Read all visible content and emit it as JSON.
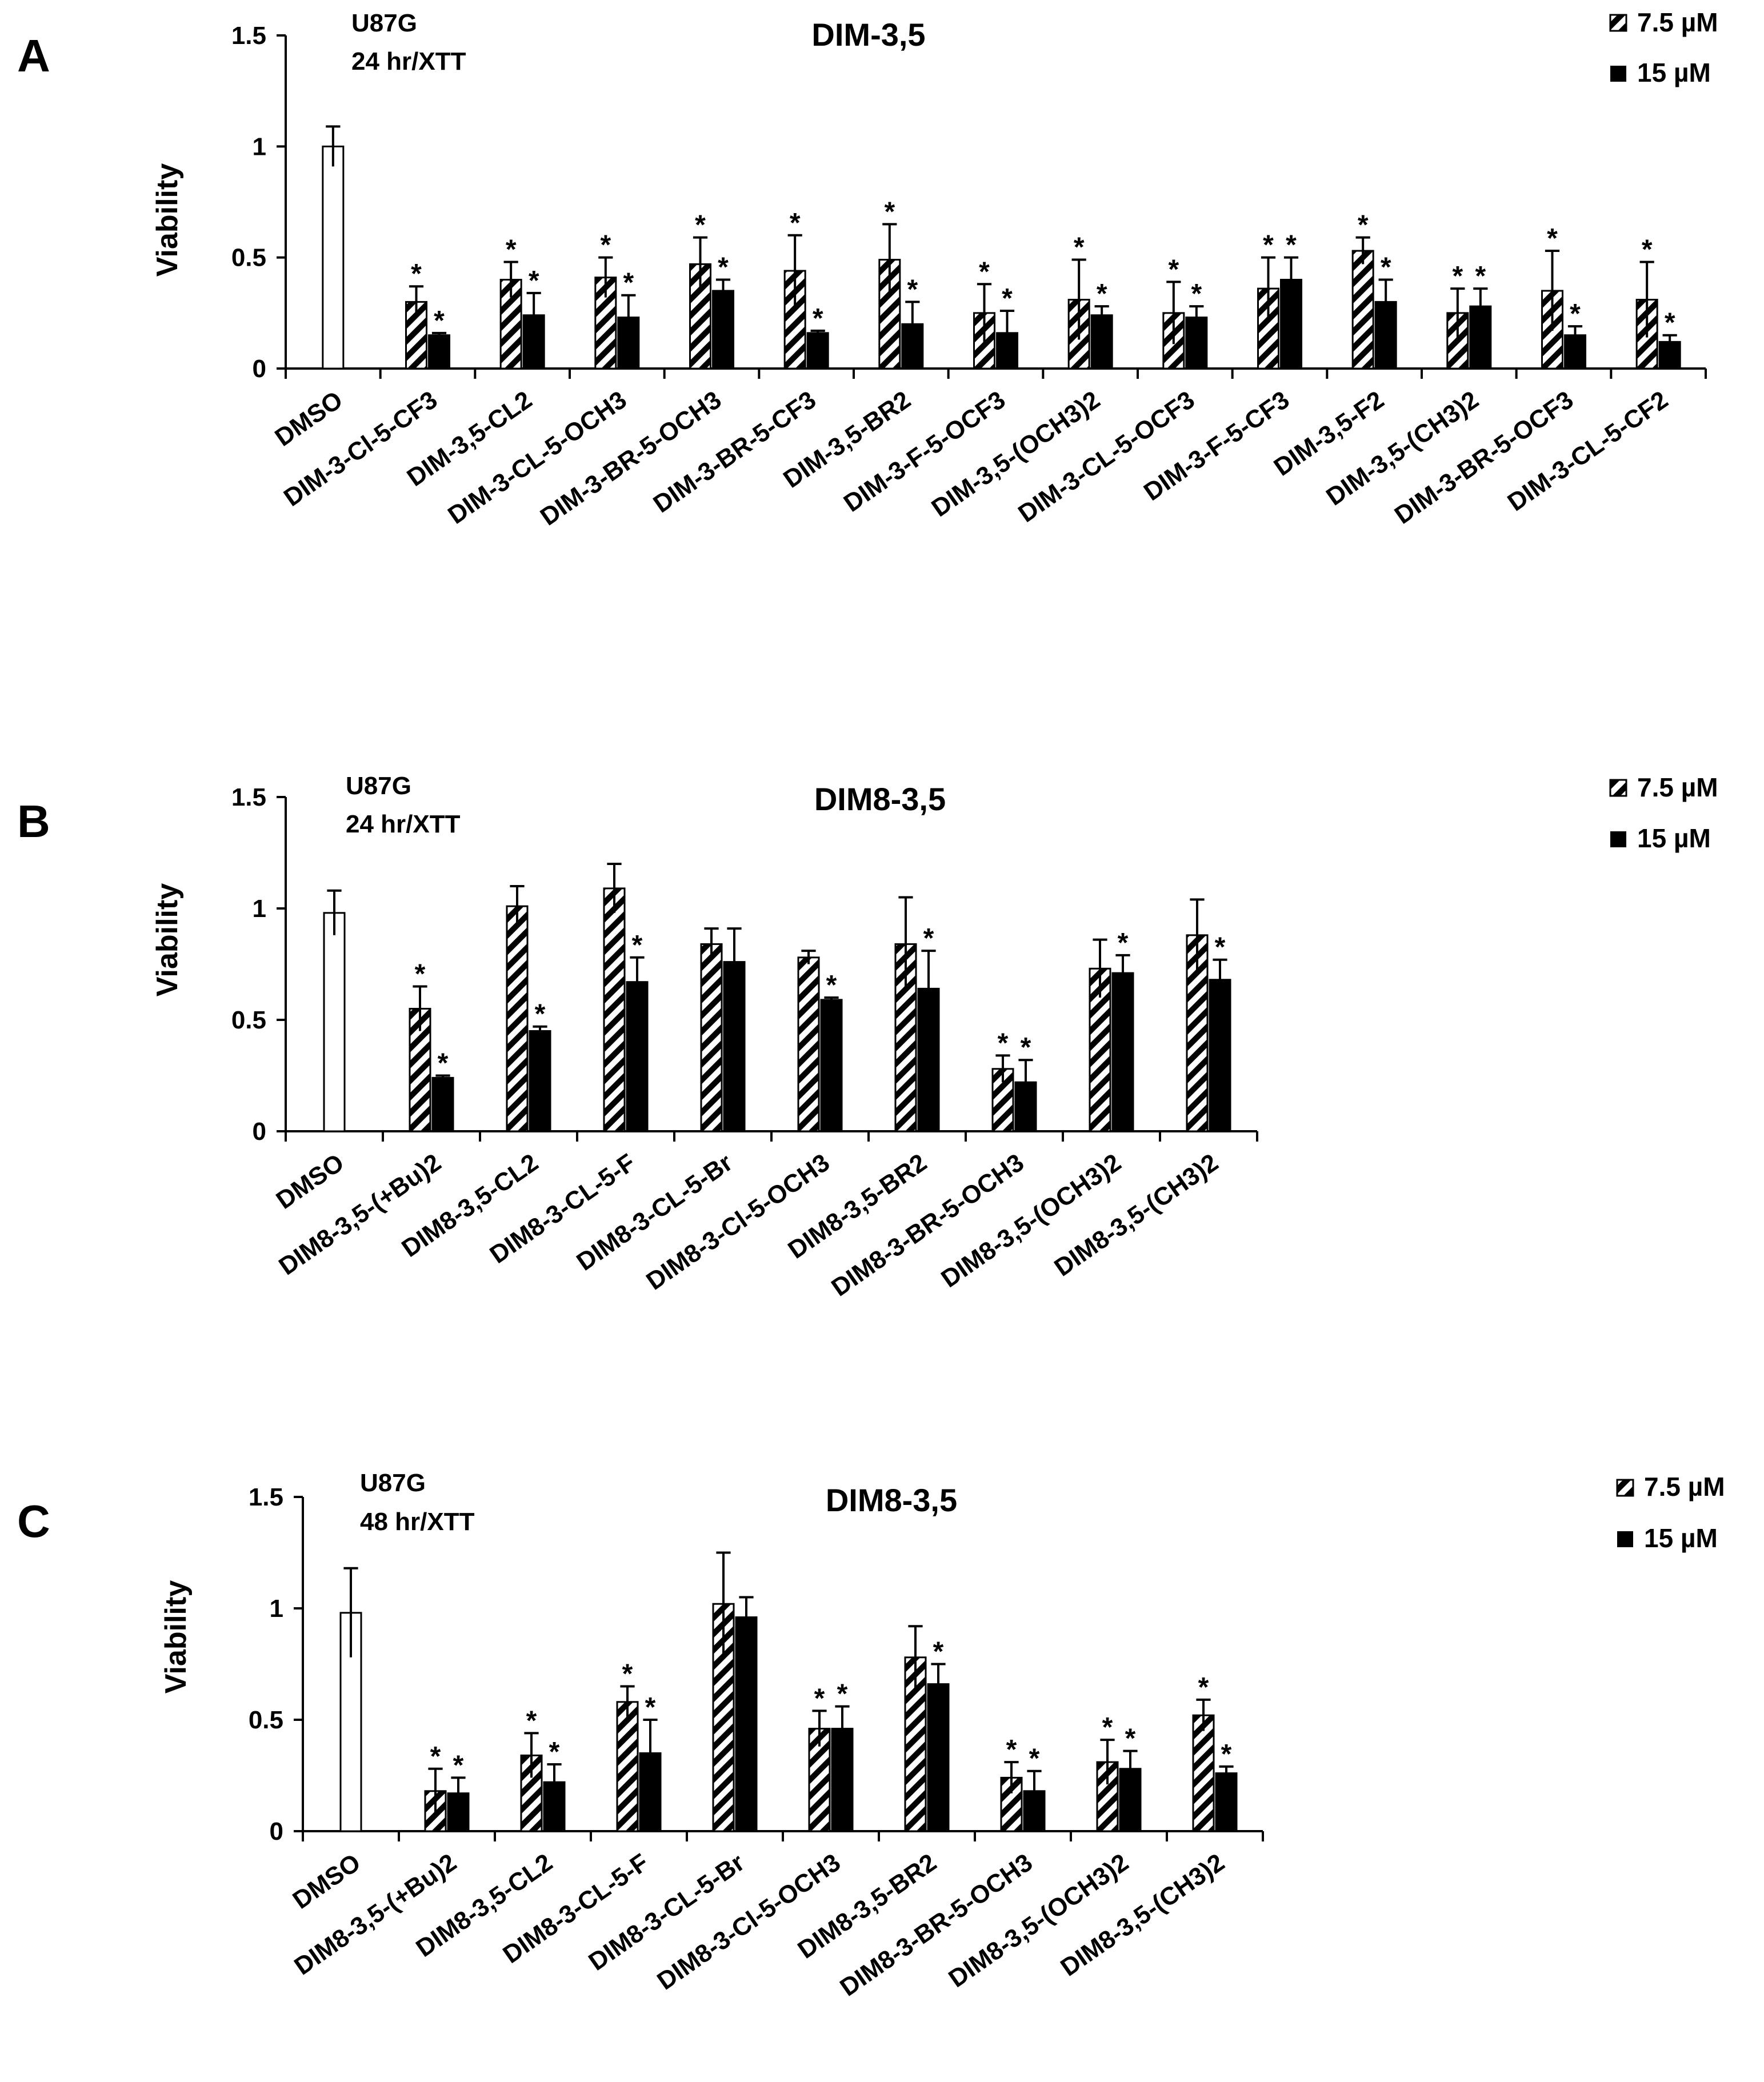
{
  "colors": {
    "ink": "#000000",
    "fill_hatch_bg": "#ffffff",
    "solid": "#000000"
  },
  "chart_data": [
    {
      "type": "bar",
      "panel": "A",
      "title": "DIM-3,5",
      "annotation": [
        "U87G",
        "24 hr/XTT"
      ],
      "xlabel": "",
      "ylabel": "Viability",
      "ylim": [
        0,
        1.5
      ],
      "yticks": [
        "0",
        "0.5",
        "1",
        "1.5"
      ],
      "ytick_values": [
        0,
        0.5,
        1,
        1.5
      ],
      "categories": [
        "DMSO",
        "DIM-3-Cl-5-CF3",
        "DIM-3,5-CL2",
        "DIM-3-CL-5-OCH3",
        "DIM-3-BR-5-OCH3",
        "DIM-3-BR-5-CF3",
        "DIM-3,5-BR2",
        "DIM-3-F-5-OCF3",
        "DIM-3,5-(OCH3)2",
        "DIM-3-CL-5-OCF3",
        "DIM-3-F-5-CF3",
        "DIM-3,5-F2",
        "DIM-3,5-(CH3)2",
        "DIM-3-BR-5-OCF3",
        "DIM-3-CL-5-CF2"
      ],
      "series": [
        {
          "name": "7.5 µM",
          "style": "hatched",
          "values": [
            1.0,
            0.3,
            0.4,
            0.41,
            0.47,
            0.44,
            0.49,
            0.25,
            0.31,
            0.25,
            0.36,
            0.53,
            0.25,
            0.35,
            0.31
          ],
          "errors": [
            0.09,
            0.07,
            0.08,
            0.09,
            0.12,
            0.16,
            0.16,
            0.13,
            0.18,
            0.14,
            0.14,
            0.06,
            0.11,
            0.18,
            0.17
          ],
          "significant": [
            false,
            true,
            true,
            true,
            true,
            true,
            true,
            true,
            true,
            true,
            true,
            true,
            true,
            true,
            true
          ]
        },
        {
          "name": "15 µM",
          "style": "solid",
          "values": [
            null,
            0.15,
            0.24,
            0.23,
            0.35,
            0.16,
            0.2,
            0.16,
            0.24,
            0.23,
            0.4,
            0.3,
            0.28,
            0.15,
            0.12
          ],
          "errors": [
            null,
            0.01,
            0.1,
            0.1,
            0.05,
            0.01,
            0.1,
            0.1,
            0.04,
            0.05,
            0.1,
            0.1,
            0.08,
            0.04,
            0.03
          ],
          "significant": [
            false,
            true,
            true,
            true,
            true,
            true,
            true,
            true,
            true,
            true,
            true,
            true,
            true,
            true,
            true
          ]
        }
      ],
      "legend": [
        "7.5 µM",
        "15 µM"
      ],
      "legend_position": "top-right",
      "significance_marker": "*"
    },
    {
      "type": "bar",
      "panel": "B",
      "title": "DIM8-3,5",
      "annotation": [
        "U87G",
        "24 hr/XTT"
      ],
      "xlabel": "",
      "ylabel": "Viability",
      "ylim": [
        0,
        1.5
      ],
      "yticks": [
        "0",
        "0.5",
        "1",
        "1.5"
      ],
      "ytick_values": [
        0,
        0.5,
        1,
        1.5
      ],
      "categories": [
        "DMSO",
        "DIM8-3,5-(+Bu)2",
        "DIM8-3,5-CL2",
        "DIM8-3-CL-5-F",
        "DIM8-3-CL-5-Br",
        "DIM8-3-Cl-5-OCH3",
        "DIM8-3,5-BR2",
        "DIM8-3-BR-5-OCH3",
        "DIM8-3,5-(OCH3)2",
        "DIM8-3,5-(CH3)2"
      ],
      "series": [
        {
          "name": "7.5 µM",
          "style": "hatched",
          "values": [
            0.98,
            0.55,
            1.01,
            1.09,
            0.84,
            0.78,
            0.84,
            0.28,
            0.73,
            0.88
          ],
          "errors": [
            0.1,
            0.1,
            0.09,
            0.11,
            0.07,
            0.03,
            0.21,
            0.06,
            0.13,
            0.16
          ],
          "significant": [
            false,
            true,
            false,
            false,
            false,
            false,
            false,
            true,
            false,
            false
          ]
        },
        {
          "name": "15 µM",
          "style": "solid",
          "values": [
            null,
            0.24,
            0.45,
            0.67,
            0.76,
            0.59,
            0.64,
            0.22,
            0.71,
            0.68
          ],
          "errors": [
            null,
            0.01,
            0.02,
            0.11,
            0.15,
            0.01,
            0.17,
            0.1,
            0.08,
            0.09
          ],
          "significant": [
            false,
            true,
            true,
            true,
            false,
            true,
            true,
            true,
            true,
            true
          ]
        }
      ],
      "legend": [
        "7.5 µM",
        "15 µM"
      ],
      "legend_position": "top-right",
      "significance_marker": "*"
    },
    {
      "type": "bar",
      "panel": "C",
      "title": "DIM8-3,5",
      "annotation": [
        "U87G",
        "48 hr/XTT"
      ],
      "xlabel": "",
      "ylabel": "Viability",
      "ylim": [
        0,
        1.5
      ],
      "yticks": [
        "0",
        "0.5",
        "1",
        "1.5"
      ],
      "ytick_values": [
        0,
        0.5,
        1,
        1.5
      ],
      "categories": [
        "DMSO",
        "DIM8-3,5-(+Bu)2",
        "DIM8-3,5-CL2",
        "DIM8-3-CL-5-F",
        "DIM8-3-CL-5-Br",
        "DIM8-3-Cl-5-OCH3",
        "DIM8-3,5-BR2",
        "DIM8-3-BR-5-OCH3",
        "DIM8-3,5-(OCH3)2",
        "DIM8-3,5-(CH3)2"
      ],
      "series": [
        {
          "name": "7.5 µM",
          "style": "hatched",
          "values": [
            0.98,
            0.18,
            0.34,
            0.58,
            1.02,
            0.46,
            0.78,
            0.24,
            0.31,
            0.52
          ],
          "errors": [
            0.2,
            0.1,
            0.1,
            0.07,
            0.23,
            0.08,
            0.14,
            0.07,
            0.1,
            0.07
          ],
          "significant": [
            false,
            true,
            true,
            true,
            false,
            true,
            false,
            true,
            true,
            true
          ]
        },
        {
          "name": "15 µM",
          "style": "solid",
          "values": [
            null,
            0.17,
            0.22,
            0.35,
            0.96,
            0.46,
            0.66,
            0.18,
            0.28,
            0.26
          ],
          "errors": [
            null,
            0.07,
            0.08,
            0.15,
            0.09,
            0.1,
            0.09,
            0.09,
            0.08,
            0.03
          ],
          "significant": [
            false,
            true,
            true,
            true,
            false,
            true,
            true,
            true,
            true,
            true
          ]
        }
      ],
      "legend": [
        "7.5 µM",
        "15 µM"
      ],
      "legend_position": "top-right",
      "significance_marker": "*"
    }
  ]
}
